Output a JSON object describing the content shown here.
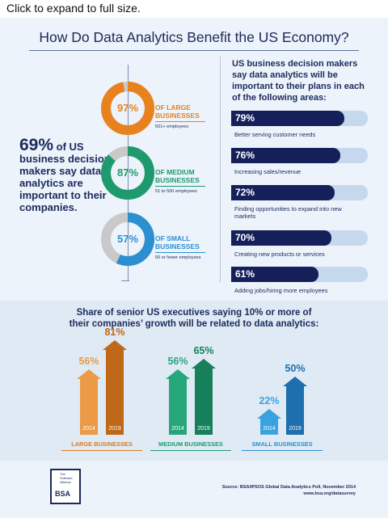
{
  "caption": "Click to expand to full size.",
  "title": "How Do Data Analytics Benefit the US Economy?",
  "left": {
    "stat_pct": "69%",
    "stat_text_1": "of US",
    "stat_text_2": "business decision makers say data analytics are important to their companies.",
    "segments": [
      {
        "pct_label": "97%",
        "value": 97,
        "name_1": "OF LARGE",
        "name_2": "BUSINESSES",
        "sub": "501+ employees",
        "color": "#e8821f"
      },
      {
        "pct_label": "87%",
        "value": 87,
        "name_1": "OF MEDIUM",
        "name_2": "BUSINESSES",
        "sub": "51 to 500 employees",
        "color": "#1e9a6e"
      },
      {
        "pct_label": "57%",
        "value": 57,
        "name_1": "OF SMALL",
        "name_2": "BUSINESSES",
        "sub": "50 or fewer employees",
        "color": "#2b8fd0"
      }
    ]
  },
  "right": {
    "intro": "US business decision makers say data analytics will be important to their plans in each of the following areas:",
    "items": [
      {
        "pct_label": "79%",
        "value": 79,
        "text": "Better serving customer needs"
      },
      {
        "pct_label": "76%",
        "value": 76,
        "text": "Increasing sales/revenue"
      },
      {
        "pct_label": "72%",
        "value": 72,
        "text": "Finding opportunities to expand into new markets"
      },
      {
        "pct_label": "70%",
        "value": 70,
        "text": "Creating new products or services"
      },
      {
        "pct_label": "61%",
        "value": 61,
        "text": "Adding jobs/hiring more employees"
      }
    ]
  },
  "bottom": {
    "title_1": "Share of senior US executives saying 10% or more of",
    "title_2": "their companies’ growth will be related to data analytics:",
    "groups": [
      {
        "label": "LARGE BUSINESSES",
        "color_2014": "#ec9a45",
        "color_2019": "#bf6818",
        "label_color": "#d97a22"
      },
      {
        "label": "MEDIUM BUSINESSES",
        "color_2014": "#27a67a",
        "color_2019": "#16805a",
        "label_color": "#1e9a6e"
      },
      {
        "label": "SMALL BUSINESSES",
        "color_2014": "#3aa2e0",
        "color_2019": "#1d6fae",
        "label_color": "#2b8fd0"
      }
    ]
  },
  "footer": {
    "logo_text": "BSA",
    "logo_small": "The Software Alliance",
    "source_1": "Source: BSA/IPSOS Global Data Analytics Poll, November 2014",
    "source_2": "www.bsa.org/datasurvey"
  },
  "chart_data": [
    {
      "type": "pie",
      "title": "",
      "categories": [
        "Large businesses (501+ employees)",
        "Medium businesses (51 to 500 employees)",
        "Small businesses (50 or fewer employees)"
      ],
      "values": [
        97,
        87,
        57
      ],
      "unit": "%"
    },
    {
      "type": "bar",
      "title": "US business decision makers say data analytics will be important to their plans in each of the following areas:",
      "categories": [
        "Better serving customer needs",
        "Increasing sales/revenue",
        "Finding opportunities to expand into new markets",
        "Creating new products or services",
        "Adding jobs/hiring more employees"
      ],
      "values": [
        79,
        76,
        72,
        70,
        61
      ],
      "ylim": [
        0,
        100
      ]
    },
    {
      "type": "bar",
      "title": "Share of senior US executives saying 10% or more of their companies’ growth will be related to data analytics:",
      "categories": [
        "LARGE BUSINESSES",
        "MEDIUM BUSINESSES",
        "SMALL BUSINESSES"
      ],
      "series": [
        {
          "name": "2014",
          "values": [
            56,
            56,
            22
          ]
        },
        {
          "name": "2019",
          "values": [
            81,
            65,
            50
          ]
        }
      ],
      "ylim": [
        0,
        100
      ]
    }
  ]
}
